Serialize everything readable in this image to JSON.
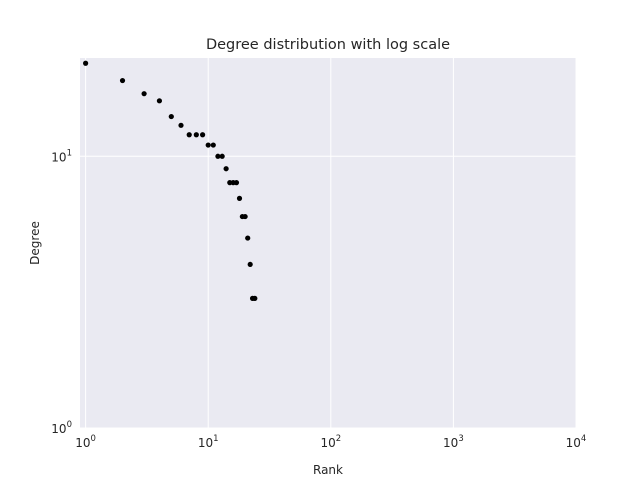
{
  "chart_data": {
    "type": "scatter",
    "title": "Degree distribution with log scale",
    "xlabel": "Rank",
    "ylabel": "Degree",
    "xscale": "log",
    "yscale": "log",
    "xlim": [
      0.9,
      10000
    ],
    "ylim": [
      1,
      23
    ],
    "grid": true,
    "x_ticks": [
      {
        "base": "10",
        "exp": "0",
        "value": 1
      },
      {
        "base": "10",
        "exp": "1",
        "value": 10
      },
      {
        "base": "10",
        "exp": "2",
        "value": 100
      },
      {
        "base": "10",
        "exp": "3",
        "value": 1000
      },
      {
        "base": "10",
        "exp": "4",
        "value": 10000
      }
    ],
    "y_ticks": [
      {
        "base": "10",
        "exp": "0",
        "value": 1
      },
      {
        "base": "10",
        "exp": "1",
        "value": 10
      }
    ],
    "series": [
      {
        "color": "#000000",
        "points": [
          [
            1,
            22
          ],
          [
            2,
            19
          ],
          [
            3,
            17
          ],
          [
            4,
            16
          ],
          [
            5,
            14
          ],
          [
            6,
            13
          ],
          [
            7,
            12
          ],
          [
            8,
            12
          ],
          [
            9,
            12
          ],
          [
            10,
            11
          ],
          [
            11,
            11
          ],
          [
            12,
            10
          ],
          [
            13,
            10
          ],
          [
            14,
            9
          ],
          [
            15,
            8
          ],
          [
            16,
            8
          ],
          [
            17,
            8
          ],
          [
            18,
            7
          ],
          [
            19,
            6
          ],
          [
            20,
            6
          ],
          [
            21,
            5
          ],
          [
            22,
            4
          ],
          [
            23,
            3
          ],
          [
            24,
            3
          ]
        ]
      }
    ]
  },
  "colors": {
    "plot_background": "#eaeaf2",
    "grid": "#ffffff",
    "text": "#262626",
    "marker": "#000000"
  }
}
